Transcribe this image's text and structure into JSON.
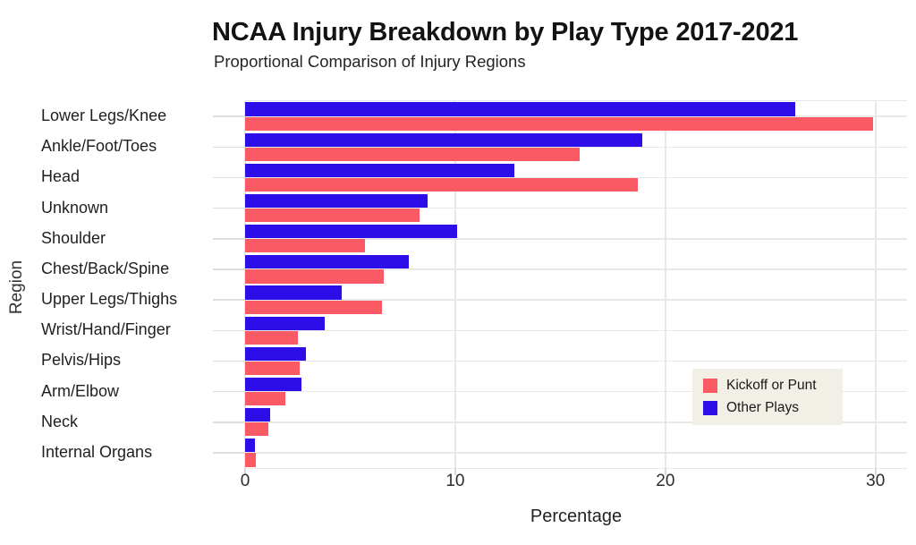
{
  "chart_data": {
    "type": "bar",
    "orientation": "horizontal",
    "title": "NCAA Injury Breakdown by Play Type 2017-2021",
    "subtitle": "Proportional Comparison of Injury Regions",
    "xlabel": "Percentage",
    "ylabel": "Region",
    "categories": [
      "Lower Legs/Knee",
      "Ankle/Foot/Toes",
      "Head",
      "Unknown",
      "Shoulder",
      "Chest/Back/Spine",
      "Upper Legs/Thighs",
      "Wrist/Hand/Finger",
      "Pelvis/Hips",
      "Arm/Elbow",
      "Neck",
      "Internal Organs"
    ],
    "series": [
      {
        "name": "Kickoff or Punt",
        "color": "#FA5A64",
        "values": [
          29.9,
          15.9,
          18.7,
          8.3,
          5.7,
          6.6,
          6.5,
          2.5,
          2.6,
          1.9,
          1.1,
          0.5
        ]
      },
      {
        "name": "Other Plays",
        "color": "#2E0EE8",
        "values": [
          26.2,
          18.9,
          12.8,
          8.7,
          10.1,
          7.8,
          4.6,
          3.8,
          2.9,
          2.7,
          1.2,
          0.45
        ]
      }
    ],
    "x_ticks": [
      "0",
      "10",
      "20",
      "30"
    ],
    "x_tick_values": [
      0,
      10,
      20,
      30
    ],
    "xlim": [
      0,
      31.5
    ],
    "grid": true,
    "legend_position": "inside-bottom-right"
  },
  "style": {
    "background": "#FFFFFF",
    "grid_color": "#E8E8E8",
    "axis_tick_color": "#DEDEDE",
    "legend_background": "#F2EFE7",
    "title_color": "#131313",
    "text_color": "#1F1F1F"
  }
}
